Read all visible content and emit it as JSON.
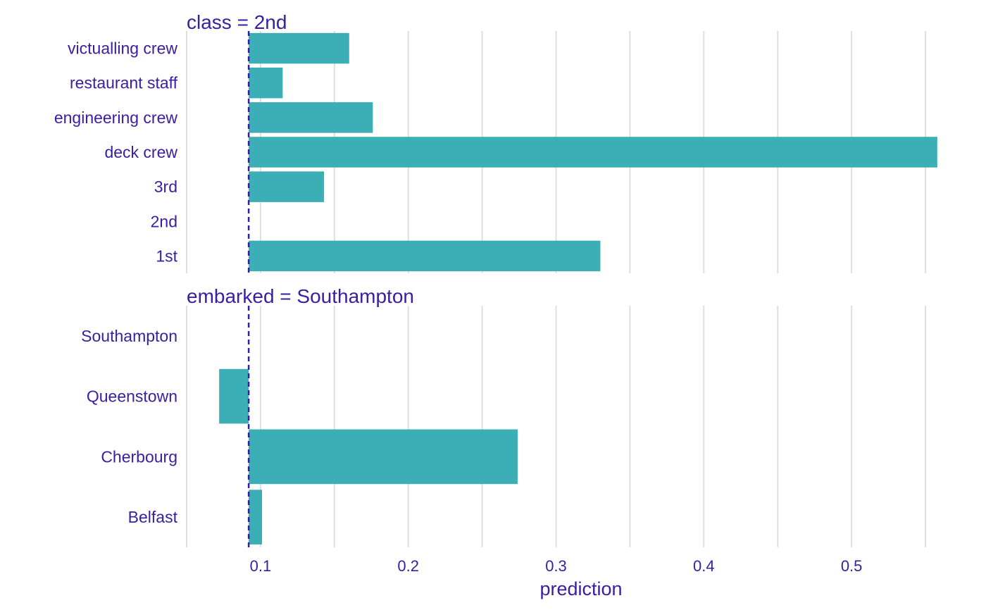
{
  "colors": {
    "bar": "#3cafb6",
    "text": "#371ea3",
    "grid": "#dfdfdf",
    "baseline": "#371ea3",
    "background": "#ffffff"
  },
  "chart_data": {
    "type": "bar",
    "orientation": "horizontal",
    "xlabel": "prediction",
    "xlim": [
      0.05,
      0.56
    ],
    "xticks": [
      0.1,
      0.2,
      0.3,
      0.4,
      0.5
    ],
    "xtick_labels": [
      "0.1",
      "0.2",
      "0.3",
      "0.4",
      "0.5"
    ],
    "minor_gridlines": [
      0.05,
      0.15,
      0.25,
      0.35,
      0.45,
      0.55
    ],
    "grid": true,
    "baseline_value": 0.092,
    "baseline_style": "dashed",
    "facets": [
      {
        "title": "class = 2nd",
        "categories": [
          "victualling crew",
          "restaurant staff",
          "engineering crew",
          "deck crew",
          "3rd",
          "2nd",
          "1st"
        ],
        "values": [
          0.16,
          0.115,
          0.176,
          0.558,
          0.143,
          0.092,
          0.33
        ]
      },
      {
        "title": "embarked = Southampton",
        "categories": [
          "Southampton",
          "Queenstown",
          "Cherbourg",
          "Belfast"
        ],
        "values": [
          0.092,
          0.072,
          0.274,
          0.101
        ]
      }
    ]
  }
}
